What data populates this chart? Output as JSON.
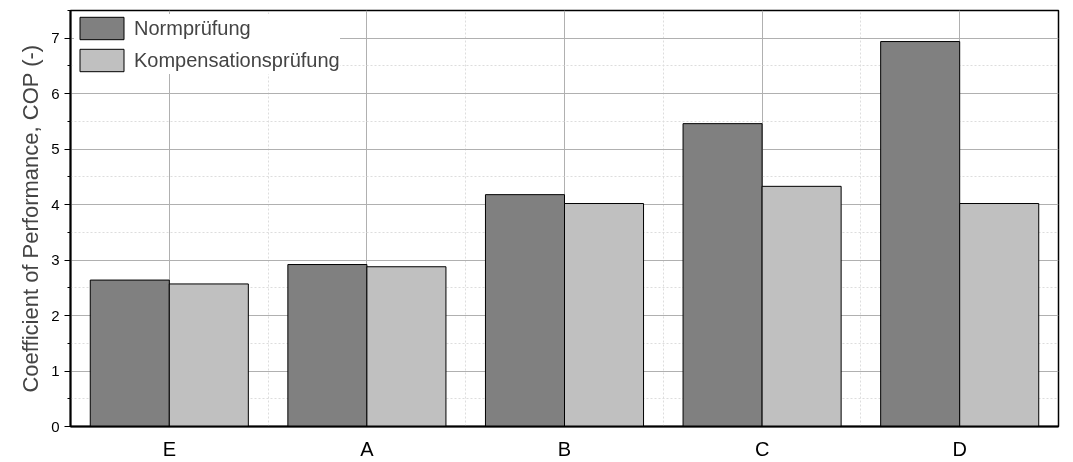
{
  "chart_data": {
    "type": "bar",
    "ylabel": "Coefficient of Performance, COP (-)",
    "categories": [
      "E",
      "A",
      "B",
      "C",
      "D"
    ],
    "series": [
      {
        "name": "Normprüfung",
        "color": "#808080",
        "values": [
          2.64,
          2.92,
          4.18,
          5.46,
          6.94
        ]
      },
      {
        "name": "Kompensationsprüfung",
        "color": "#c0c0c0",
        "values": [
          2.57,
          2.88,
          4.02,
          4.33,
          4.02
        ]
      }
    ],
    "ylim": [
      0,
      7.5
    ],
    "yticks": [
      0,
      1,
      2,
      3,
      4,
      5,
      6,
      7
    ],
    "grid": true,
    "legend": "top left"
  }
}
